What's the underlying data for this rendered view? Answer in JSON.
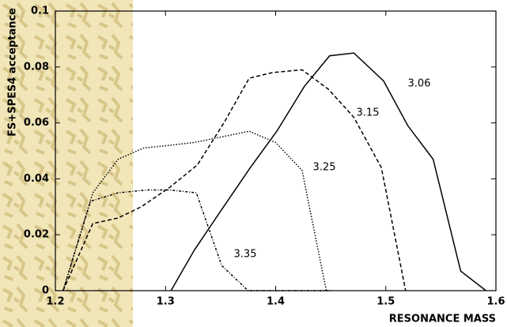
{
  "chart_data": {
    "type": "line",
    "xlabel": "RESONANCE MASS",
    "ylabel": "FS+SPES4 acceptance",
    "xlim": [
      1.2,
      1.6
    ],
    "ylim": [
      0,
      0.1
    ],
    "xticks": [
      1.2,
      1.3,
      1.4,
      1.5,
      1.6
    ],
    "yticks": [
      0,
      0.02,
      0.04,
      0.06,
      0.08,
      0.1
    ],
    "series": [
      {
        "name": "3.06",
        "color": "#000000",
        "dash": "solid",
        "x": [
          1.305,
          1.326,
          1.351,
          1.377,
          1.401,
          1.426,
          1.449,
          1.471,
          1.498,
          1.52,
          1.543,
          1.568,
          1.591
        ],
        "values": [
          0,
          0.0144,
          0.029,
          0.044,
          0.057,
          0.073,
          0.084,
          0.085,
          0.075,
          0.059,
          0.047,
          0.007,
          0
        ]
      },
      {
        "name": "3.15",
        "color": "#000000",
        "dash": "dashed",
        "x": [
          1.207,
          1.234,
          1.257,
          1.278,
          1.304,
          1.329,
          1.353,
          1.376,
          1.397,
          1.424,
          1.448,
          1.471,
          1.496,
          1.518
        ],
        "values": [
          0,
          0.024,
          0.026,
          0.03,
          0.037,
          0.045,
          0.06,
          0.076,
          0.078,
          0.079,
          0.072,
          0.062,
          0.044,
          0
        ]
      },
      {
        "name": "3.25",
        "color": "#000000",
        "dash": "dotted",
        "x": [
          1.207,
          1.234,
          1.257,
          1.28,
          1.304,
          1.326,
          1.351,
          1.376,
          1.4,
          1.424,
          1.446
        ],
        "values": [
          0,
          0.035,
          0.047,
          0.051,
          0.052,
          0.053,
          0.055,
          0.057,
          0.053,
          0.043,
          0
        ]
      },
      {
        "name": "3.35",
        "color": "#000000",
        "dash": "dashdot",
        "x": [
          1.207,
          1.232,
          1.257,
          1.283,
          1.304,
          1.328,
          1.351,
          1.375,
          1.45
        ],
        "values": [
          0,
          0.032,
          0.035,
          0.036,
          0.036,
          0.035,
          0.009,
          0,
          0
        ]
      }
    ]
  }
}
